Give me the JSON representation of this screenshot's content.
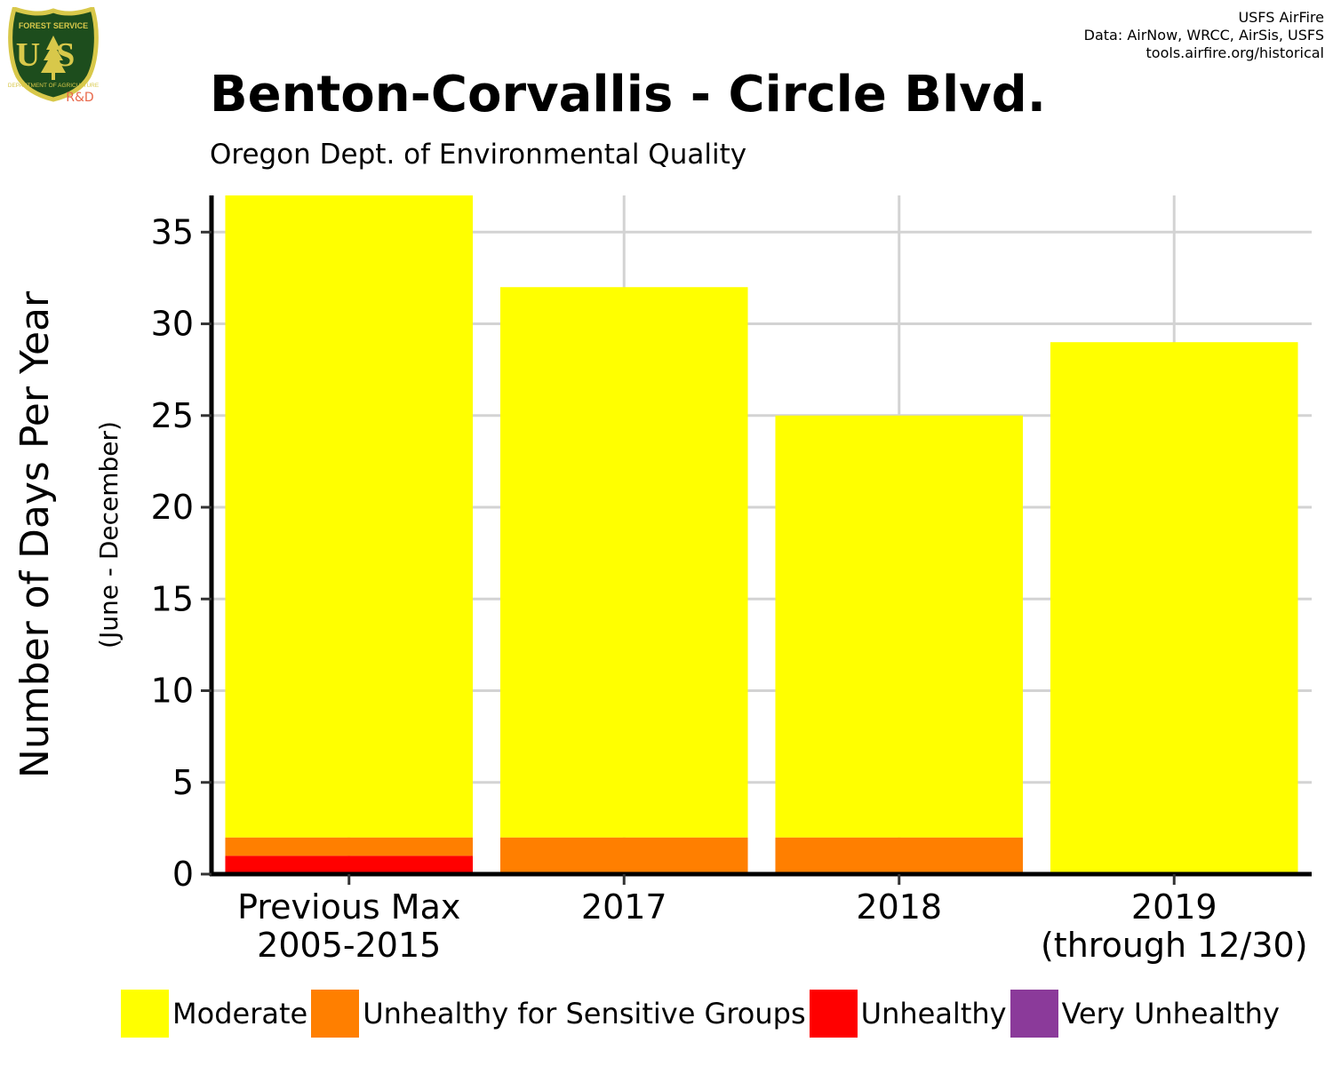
{
  "header": {
    "title": "Benton-Corvallis - Circle Blvd.",
    "subtitle": "Oregon Dept. of Environmental Quality",
    "credits": [
      "USFS AirFire",
      "Data: AirNow, WRCC, AirSis, USFS",
      "tools.airfire.org/historical"
    ]
  },
  "logo": {
    "top_text": "FOREST SERVICE",
    "letters": "US",
    "bottom_text": "DEPARTMENT OF AGRICULTURE",
    "tag": "R&D",
    "colors": {
      "shield": "#1d4d1d",
      "trim": "#d8c84a",
      "tag": "#e8684a"
    }
  },
  "chart_data": {
    "type": "bar",
    "stacked": true,
    "categories": [
      [
        "Previous Max",
        "2005-2015"
      ],
      [
        "2017"
      ],
      [
        "2018"
      ],
      [
        "2019",
        "(through 12/30)"
      ]
    ],
    "series": [
      {
        "name": "Very Unhealthy",
        "color": "#8b3a9a",
        "values": [
          0,
          0,
          0,
          0
        ]
      },
      {
        "name": "Unhealthy",
        "color": "#ff0000",
        "values": [
          1,
          0,
          0,
          0
        ]
      },
      {
        "name": "Unhealthy for Sensitive Groups",
        "color": "#ff7f00",
        "values": [
          1,
          2,
          2,
          0
        ]
      },
      {
        "name": "Moderate",
        "color": "#ffff00",
        "values": [
          35,
          30,
          23,
          29
        ]
      }
    ],
    "legend_order": [
      "Moderate",
      "Unhealthy for Sensitive Groups",
      "Unhealthy",
      "Very Unhealthy"
    ],
    "ylabel": "Number of Days Per Year",
    "ylabel_sub": "(June - December)",
    "yticks": [
      0,
      5,
      10,
      15,
      20,
      25,
      30,
      35
    ],
    "ylim": [
      0,
      37
    ],
    "grid": true,
    "legend_position": "bottom"
  }
}
